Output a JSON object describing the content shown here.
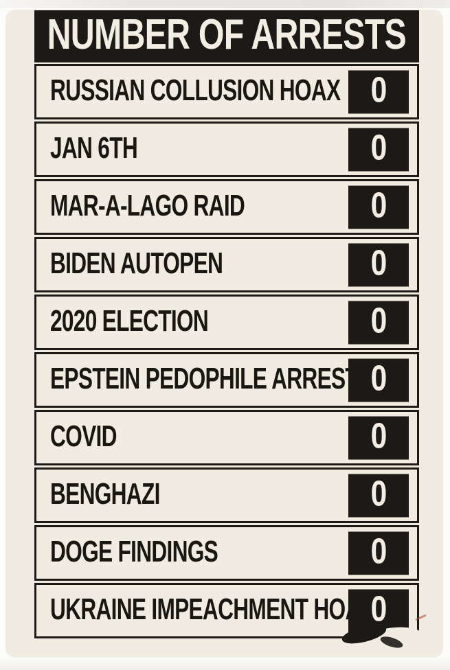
{
  "title": "NUMBER OF ARRESTS",
  "rows": [
    {
      "label": "RUSSIAN COLLUSION HOAX",
      "value": "0"
    },
    {
      "label": "JAN 6TH",
      "value": "0"
    },
    {
      "label": "MAR-A-LAGO RAID",
      "value": "0"
    },
    {
      "label": "BIDEN AUTOPEN",
      "value": "0"
    },
    {
      "label": "2020 ELECTION",
      "value": "0"
    },
    {
      "label": "EPSTEIN PEDOPHILE ARRESTS",
      "value": "0"
    },
    {
      "label": "COVID",
      "value": "0"
    },
    {
      "label": "BENGHAZI",
      "value": "0"
    },
    {
      "label": "DOGE FINDINGS",
      "value": "0"
    },
    {
      "label": "UKRAINE IMPEACHMENT HOAX",
      "value": "0"
    }
  ],
  "colors": {
    "card_background": "#f1ece1",
    "ink_black": "#1c1916",
    "light_text": "#f3eee4",
    "pen_mark_red": "#a34a32"
  },
  "chart_data": {
    "type": "table",
    "title": "NUMBER OF ARRESTS",
    "categories": [
      "RUSSIAN COLLUSION HOAX",
      "JAN 6TH",
      "MAR-A-LAGO RAID",
      "BIDEN AUTOPEN",
      "2020 ELECTION",
      "EPSTEIN PEDOPHILE ARRESTS",
      "COVID",
      "BENGHAZI",
      "DOGE FINDINGS",
      "UKRAINE IMPEACHMENT HOAX"
    ],
    "values": [
      0,
      0,
      0,
      0,
      0,
      0,
      0,
      0,
      0,
      0
    ],
    "columns": [
      "category",
      "number_of_arrests"
    ],
    "layout": "single-column scoreboard list, value badge right-aligned per row"
  }
}
